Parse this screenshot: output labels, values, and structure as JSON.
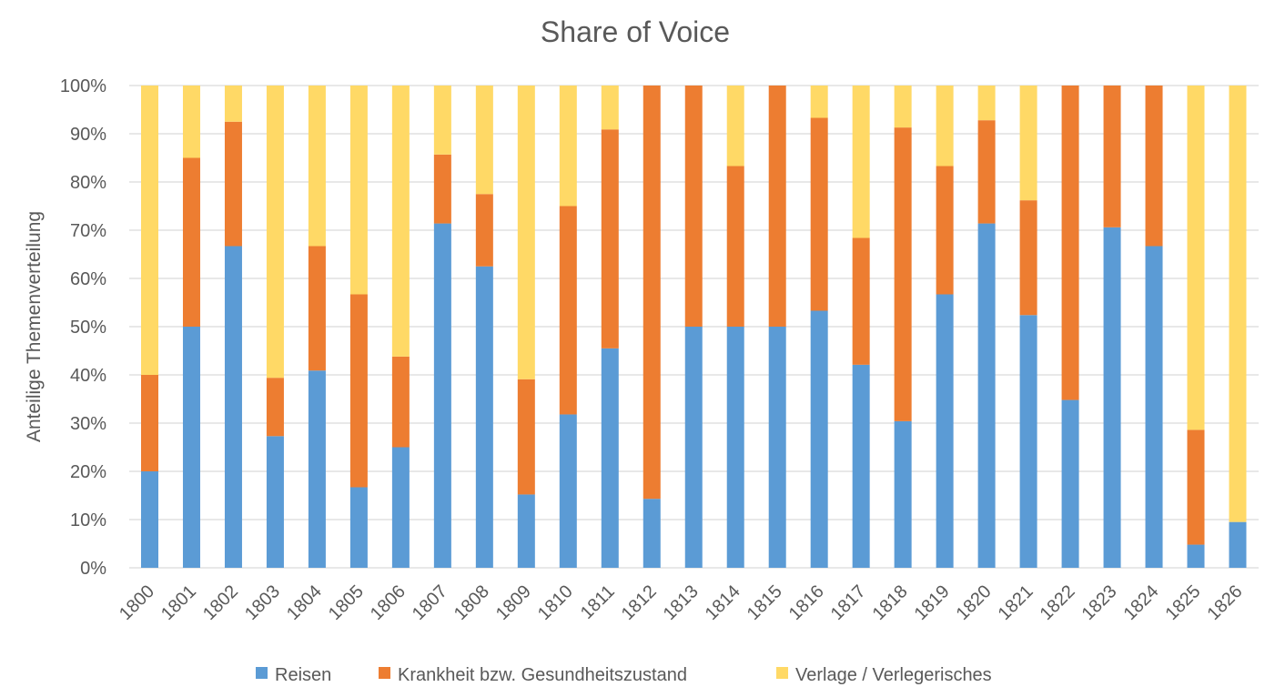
{
  "chart_data": {
    "type": "bar",
    "stacked": "percent",
    "title": "Share of Voice",
    "ylabel": "Anteilige Themenverteilung",
    "xlabel": "",
    "ylim": [
      0,
      100
    ],
    "yticks": [
      "0%",
      "10%",
      "20%",
      "30%",
      "40%",
      "50%",
      "60%",
      "70%",
      "80%",
      "90%",
      "100%"
    ],
    "categories": [
      "1800",
      "1801",
      "1802",
      "1803",
      "1804",
      "1805",
      "1806",
      "1807",
      "1808",
      "1809",
      "1810",
      "1811",
      "1812",
      "1813",
      "1814",
      "1815",
      "1816",
      "1817",
      "1818",
      "1819",
      "1820",
      "1821",
      "1822",
      "1823",
      "1824",
      "1825",
      "1826"
    ],
    "series": [
      {
        "name": "Reisen",
        "color": "#5b9bd5",
        "values": [
          20,
          50,
          66.7,
          27.3,
          40.9,
          16.7,
          25,
          71.4,
          62.5,
          15.2,
          31.8,
          45.5,
          14.3,
          50,
          50,
          50,
          53.3,
          42.1,
          30.4,
          56.7,
          71.4,
          52.4,
          34.8,
          70.6,
          66.7,
          4.8,
          9.5
        ]
      },
      {
        "name": "Krankheit bzw. Gesundheitszustand",
        "color": "#ed7d31",
        "values": [
          20,
          35,
          25.8,
          12.1,
          25.8,
          40,
          18.8,
          14.3,
          15,
          23.9,
          43.2,
          45.4,
          85.7,
          50,
          33.3,
          50,
          40,
          26.3,
          60.9,
          26.6,
          21.4,
          23.8,
          65.2,
          29.4,
          33.3,
          23.8,
          0
        ]
      },
      {
        "name": "Verlage / Verlegerisches",
        "color": "#ffd966",
        "values": [
          60,
          15,
          7.5,
          60.6,
          33.3,
          43.3,
          56.2,
          14.3,
          22.5,
          60.9,
          25,
          9.1,
          0,
          0,
          16.7,
          0,
          6.7,
          31.6,
          8.7,
          16.7,
          7.2,
          23.8,
          0,
          0,
          0,
          71.4,
          90.5
        ]
      }
    ],
    "legend": {
      "position": "bottom"
    },
    "grid": true
  }
}
